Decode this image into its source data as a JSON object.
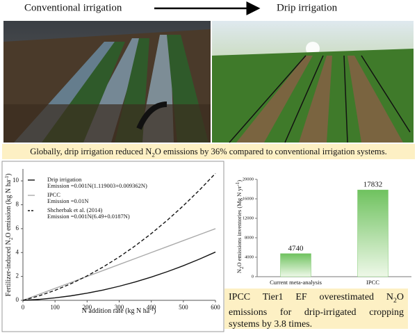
{
  "header": {
    "left": "Conventional irrigation",
    "right": "Drip irrigation"
  },
  "banner": [
    "Globally, drip irrigation reduced N",
    "2",
    "O emissions by 36% compared to conventional irrigation systems."
  ],
  "chart_data": [
    {
      "type": "line",
      "ylabel": [
        "Fertilizer-induced N",
        "2",
        "O emission (kg N ha",
        "-1",
        ")"
      ],
      "xlabel": [
        "N addition rate (kg N ha",
        "-1",
        ")"
      ],
      "x": [
        0,
        50,
        100,
        150,
        200,
        250,
        300,
        350,
        400,
        450,
        500,
        550,
        600
      ],
      "xlim": [
        0,
        600
      ],
      "xticks": [
        0,
        100,
        200,
        300,
        400,
        500,
        600
      ],
      "ylim": [
        0,
        11
      ],
      "yticks": [
        0,
        2,
        4,
        6,
        8,
        10
      ],
      "series": [
        {
          "name": "Drip irrigation",
          "formula": "Emission =0.001N(1.119003+0.009362N)",
          "color": "#111111",
          "style": "solid",
          "values": [
            0,
            0.0794,
            0.2055,
            0.3785,
            0.5983,
            0.8649,
            1.1783,
            1.5385,
            1.9455,
            2.3994,
            2.9,
            3.4475,
            4.0417
          ]
        },
        {
          "name": "IPCC",
          "formula": "Emission =0.01N",
          "color": "#aaaaaa",
          "style": "solid",
          "values": [
            0,
            0.5,
            1,
            1.5,
            2,
            2.5,
            3,
            3.5,
            4,
            4.5,
            5,
            5.5,
            6
          ]
        },
        {
          "name": "Shcherbak et al. (2014)",
          "formula": "Emission =0.001N(6.49+0.0187N)",
          "color": "#111111",
          "style": "dashed",
          "values": [
            0,
            0.3713,
            0.836,
            1.3943,
            2.046,
            2.7913,
            3.63,
            4.5623,
            5.588,
            6.7073,
            7.92,
            9.2263,
            10.626
          ]
        }
      ]
    },
    {
      "type": "bar",
      "ylabel": [
        "N",
        "2",
        "O emissions inventories (Mg N yr",
        "-1",
        ")"
      ],
      "categories": [
        "Current meta-analysis",
        "IPCC"
      ],
      "values": [
        4740,
        17832
      ],
      "ylim": [
        0,
        20000
      ],
      "yticks": [
        0,
        4000,
        8000,
        12000,
        16000,
        20000
      ],
      "color": "#7cc76c"
    }
  ],
  "conclusion": [
    "IPCC Tier1 EF overestimated N",
    "2",
    "O emissions for drip-irrigated cropping systems by 3.8 times."
  ]
}
